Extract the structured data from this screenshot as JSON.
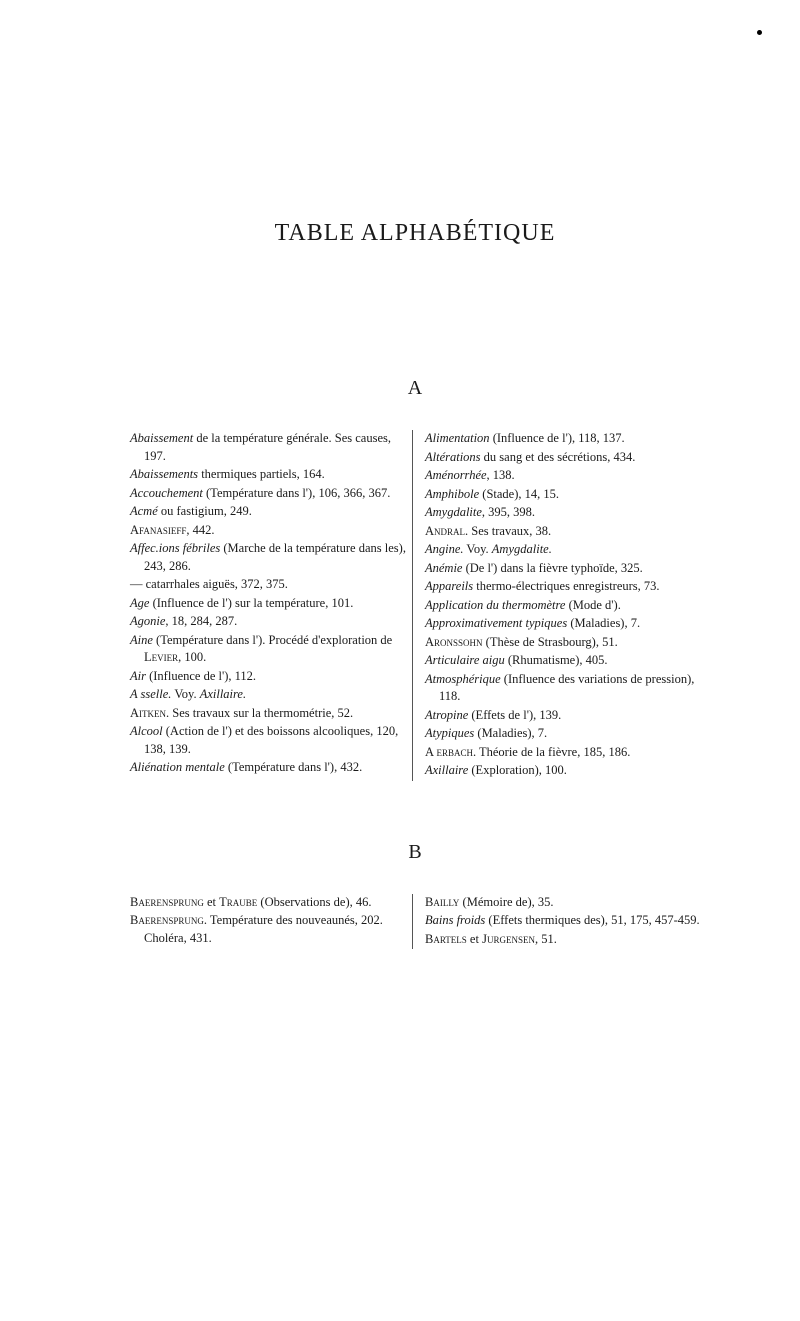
{
  "title": "TABLE ALPHABÉTIQUE",
  "section_a": {
    "letter": "A",
    "left": [
      {
        "term": "Abaissement",
        "rest": " de la température générale. Ses causes, 197."
      },
      {
        "term": "Abaissements",
        "rest": " thermiques partiels, 164."
      },
      {
        "term": "Accouchement",
        "rest": " (Température dans l'), 106, 366, 367."
      },
      {
        "term": "Acmé",
        "rest": " ou fastigium, 249."
      },
      {
        "sc": "Afanasieff",
        "rest": ", 442."
      },
      {
        "term": "Affec.ions fébriles",
        "rest": " (Marche de la température dans les), 243, 286."
      },
      {
        "prefix": "—   catarrhales aiguës, 372, 375.",
        "rest": ""
      },
      {
        "term": "Age",
        "rest": " (Influence de l') sur la température, 101."
      },
      {
        "term": "Agonie",
        "rest": ", 18, 284, 287."
      },
      {
        "term": "Aine",
        "rest": " (Température dans l'). Procédé d'exploration de ",
        "sc2": "Levier",
        "rest2": ", 100."
      },
      {
        "term": "Air",
        "rest": " (Influence de l'), 112."
      },
      {
        "term": "A sselle.",
        "rest": " Voy. ",
        "term2": "Axillaire.",
        "rest2": ""
      },
      {
        "sc": "Aitken",
        "rest": ". Ses travaux sur la thermométrie, 52."
      },
      {
        "term": "Alcool",
        "rest": " (Action de l') et des boissons alcooliques, 120, 138, 139."
      },
      {
        "term": "Aliénation mentale",
        "rest": " (Température dans l'), 432."
      }
    ],
    "right": [
      {
        "term": "Alimentation",
        "rest": " (Influence de l'), 118, 137."
      },
      {
        "term": "Altérations",
        "rest": " du sang et des sécrétions, 434."
      },
      {
        "term": "Aménorrhée",
        "rest": ", 138."
      },
      {
        "term": "Amphibole",
        "rest": " (Stade), 14, 15."
      },
      {
        "term": "Amygdalite",
        "rest": ", 395, 398."
      },
      {
        "sc": "Andral",
        "rest": ". Ses travaux, 38."
      },
      {
        "term": "Angine.",
        "rest": " Voy. ",
        "term2": "Amygdalite.",
        "rest2": ""
      },
      {
        "term": "Anémie",
        "rest": " (De l') dans la fièvre typhoïde, 325."
      },
      {
        "term": "Appareils",
        "rest": " thermo-électriques enregistreurs, 73."
      },
      {
        "term": "Application du thermomètre",
        "rest": " (Mode d')."
      },
      {
        "term": "Approximativement typiques",
        "rest": " (Maladies), 7."
      },
      {
        "sc": "Aronssohn",
        "rest": " (Thèse de Strasbourg), 51."
      },
      {
        "term": "Articulaire aigu",
        "rest": " (Rhumatisme), 405."
      },
      {
        "term": "Atmosphérique",
        "rest": " (Influence des variations de pression), 118."
      },
      {
        "term": "Atropine",
        "rest": " (Effets de l'), 139."
      },
      {
        "term": "Atypiques",
        "rest": " (Maladies), 7."
      },
      {
        "prefix": "A ",
        "sc": "erbach",
        "rest": ". Théorie de la fièvre, 185, 186."
      },
      {
        "term": "Axillaire",
        "rest": " (Exploration), 100."
      }
    ]
  },
  "section_b": {
    "letter": "B",
    "left": [
      {
        "sc": "Baerensprung",
        "rest": " et ",
        "sc2": "Traube",
        "rest2": " (Observations de), 46."
      },
      {
        "sc": "Baerensprung",
        "rest": ". Température des nouveaunés, 202. Choléra, 431."
      }
    ],
    "right": [
      {
        "sc": "Bailly",
        "rest": " (Mémoire de), 35."
      },
      {
        "term": "Bains froids",
        "rest": " (Effets thermiques des), 51, 175, 457-459."
      },
      {
        "sc": "Bartels",
        "rest": " et ",
        "sc2": "Jurgensen",
        "rest2": ", 51."
      }
    ]
  }
}
